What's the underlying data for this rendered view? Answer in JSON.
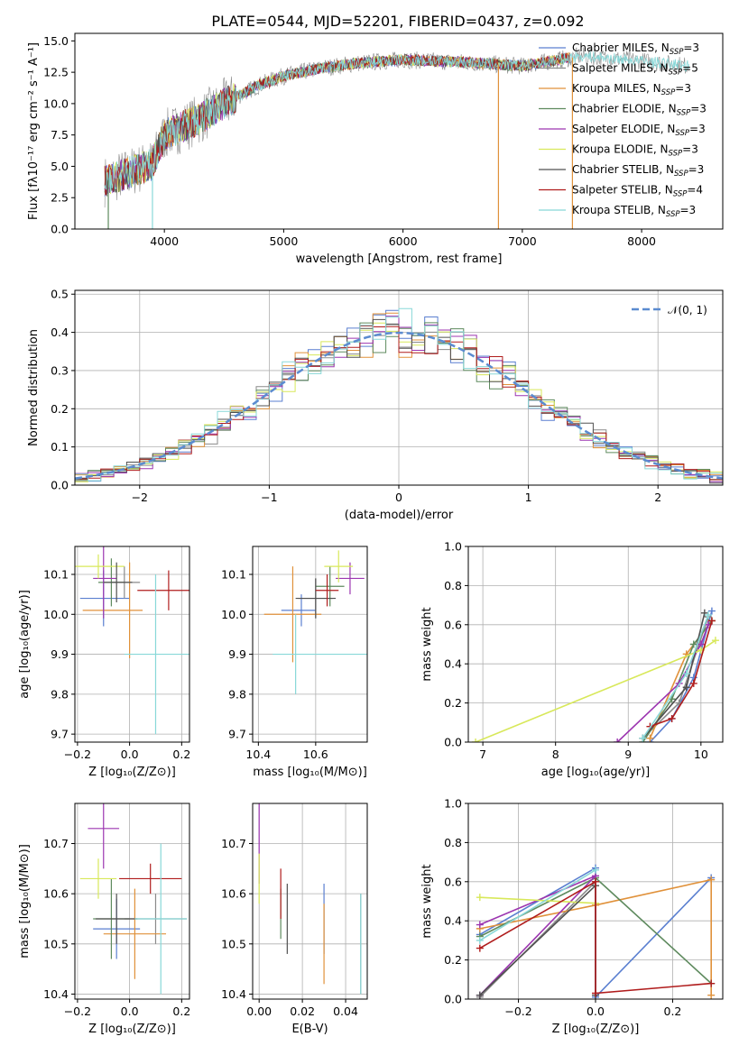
{
  "figure": {
    "title": "PLATE=0544, MJD=52201, FIBERID=0437, z=0.092"
  },
  "series": [
    {
      "label": "Chabrier MILES, N",
      "n": "3",
      "color": "#5a7fd0"
    },
    {
      "label": "Salpeter MILES, N",
      "n": "5",
      "color": "#8a8a8a"
    },
    {
      "label": "Kroupa MILES, N",
      "n": "3",
      "color": "#e0913a"
    },
    {
      "label": "Chabrier ELODIE, N",
      "n": "3",
      "color": "#5e8a5e"
    },
    {
      "label": "Salpeter ELODIE, N",
      "n": "3",
      "color": "#9c35b0"
    },
    {
      "label": "Kroupa ELODIE, N",
      "n": "3",
      "color": "#d8e85a"
    },
    {
      "label": "Chabrier STELIB, N",
      "n": "3",
      "color": "#505050"
    },
    {
      "label": "Salpeter STELIB, N",
      "n": "4",
      "color": "#b01c1c"
    },
    {
      "label": "Kroupa STELIB, N",
      "n": "3",
      "color": "#88d8d8"
    }
  ],
  "ssp_subscript": "SSP",
  "chart_data": [
    {
      "id": "spectrum",
      "type": "line",
      "xlabel": "wavelength [Angstrom, rest frame]",
      "ylabel": "Flux [fλ10⁻¹⁷ erg cm⁻² s⁻¹ A⁻¹]",
      "xlim": [
        3250,
        8680
      ],
      "ylim": [
        0,
        15.6
      ],
      "xticks": [
        4000,
        5000,
        6000,
        7000,
        8000
      ],
      "yticks": [
        0.0,
        2.5,
        5.0,
        7.5,
        10.0,
        12.5,
        15.0
      ],
      "x_range": [
        3500,
        8400
      ],
      "envelope": [
        [
          3500,
          3.8
        ],
        [
          3700,
          4.5
        ],
        [
          3900,
          5.2
        ],
        [
          4000,
          7.5
        ],
        [
          4300,
          8.8
        ],
        [
          4500,
          10.0
        ],
        [
          4800,
          11.5
        ],
        [
          5000,
          12.2
        ],
        [
          5300,
          12.8
        ],
        [
          5600,
          13.2
        ],
        [
          6000,
          13.5
        ],
        [
          6500,
          13.3
        ],
        [
          7000,
          13.0
        ],
        [
          7500,
          13.8
        ],
        [
          8000,
          13.4
        ],
        [
          8400,
          13.0
        ]
      ]
    },
    {
      "id": "residuals",
      "type": "bar",
      "xlabel": "(data-model)/error",
      "ylabel": "Normed distribution",
      "xlim": [
        -2.5,
        2.5
      ],
      "ylim": [
        0,
        0.51
      ],
      "xticks": [
        -2,
        -1,
        0,
        1,
        2
      ],
      "yticks": [
        0.0,
        0.1,
        0.2,
        0.3,
        0.4,
        0.5
      ],
      "grid": true,
      "legend": "upper right",
      "legend_label": "𝒩(0, 1)",
      "bin_width": 0.1
    },
    {
      "id": "age-z",
      "type": "scatter",
      "xlabel": "Z [log₁₀(Z/Z⊙)]",
      "ylabel": "age  [log₁₀(age/yr)]",
      "xlim": [
        -0.21,
        0.23
      ],
      "ylim": [
        9.68,
        10.17
      ],
      "xticks": [
        -0.2,
        0.0,
        0.2
      ],
      "yticks": [
        9.7,
        9.8,
        9.9,
        10.0,
        10.1
      ],
      "grid": true,
      "points": [
        [
          -0.1,
          10.04,
          0.09,
          0.1,
          0.07
        ],
        [
          -0.02,
          10.08,
          0.05,
          0.06,
          0.04
        ],
        [
          0.0,
          10.01,
          0.18,
          0.05,
          0.12
        ],
        [
          -0.07,
          10.08,
          0.05,
          0.05,
          0.06
        ],
        [
          -0.1,
          10.09,
          0.04,
          0.05,
          0.1
        ],
        [
          -0.12,
          10.12,
          0.1,
          0.1,
          0.03
        ],
        [
          -0.05,
          10.08,
          0.05,
          0.06,
          0.05
        ],
        [
          0.15,
          10.06,
          0.12,
          0.12,
          0.05
        ],
        [
          0.1,
          9.9,
          0.12,
          0.24,
          0.2
        ]
      ]
    },
    {
      "id": "age-mass",
      "type": "scatter",
      "xlabel": "mass [log₁₀(M/M⊙)]",
      "ylabel": "",
      "xlim": [
        10.38,
        10.78
      ],
      "ylim": [
        9.68,
        10.17
      ],
      "xticks": [
        10.4,
        10.6
      ],
      "yticks": [
        9.7,
        9.8,
        9.9,
        10.0,
        10.1
      ],
      "grid": true,
      "points": [
        [
          10.55,
          10.01,
          0.07,
          0.05,
          0.04
        ],
        [
          10.6,
          10.04,
          0.06,
          0.06,
          0.05
        ],
        [
          10.52,
          10.0,
          0.1,
          0.1,
          0.12
        ],
        [
          10.65,
          10.07,
          0.05,
          0.05,
          0.05
        ],
        [
          10.72,
          10.09,
          0.05,
          0.05,
          0.04
        ],
        [
          10.68,
          10.12,
          0.05,
          0.05,
          0.04
        ],
        [
          10.6,
          10.04,
          0.07,
          0.07,
          0.05
        ],
        [
          10.64,
          10.06,
          0.04,
          0.04,
          0.04
        ],
        [
          10.53,
          9.9,
          0.08,
          0.25,
          0.1
        ]
      ]
    },
    {
      "id": "mw-age",
      "type": "line",
      "xlabel": "age  [log₁₀(age/yr)]",
      "ylabel": "mass weight",
      "xlim": [
        6.8,
        10.3
      ],
      "ylim": [
        0,
        1.0
      ],
      "xticks": [
        7,
        8,
        9,
        10
      ],
      "yticks": [
        0.0,
        0.2,
        0.4,
        0.6,
        0.8,
        1.0
      ],
      "grid": true,
      "lines": [
        [
          [
            9.3,
            0.0
          ],
          [
            9.6,
            0.12
          ],
          [
            9.9,
            0.33
          ],
          [
            10.15,
            0.67
          ]
        ],
        [
          [
            9.2,
            0.02
          ],
          [
            9.7,
            0.2
          ],
          [
            10.1,
            0.64
          ]
        ],
        [
          [
            9.3,
            0.02
          ],
          [
            9.8,
            0.45
          ],
          [
            10.15,
            0.62
          ]
        ],
        [
          [
            9.2,
            0.0
          ],
          [
            9.6,
            0.22
          ],
          [
            9.9,
            0.5
          ],
          [
            10.15,
            0.62
          ]
        ],
        [
          [
            8.85,
            0.0
          ],
          [
            9.7,
            0.3
          ],
          [
            10.0,
            0.5
          ],
          [
            10.1,
            0.6
          ]
        ],
        [
          [
            6.9,
            0.0
          ],
          [
            10.0,
            0.47
          ],
          [
            10.2,
            0.52
          ]
        ],
        [
          [
            9.2,
            0.02
          ],
          [
            9.8,
            0.28
          ],
          [
            10.05,
            0.66
          ]
        ],
        [
          [
            9.3,
            0.08
          ],
          [
            9.6,
            0.12
          ],
          [
            9.9,
            0.3
          ],
          [
            10.15,
            0.62
          ]
        ],
        [
          [
            9.2,
            0.02
          ],
          [
            9.8,
            0.35
          ],
          [
            10.1,
            0.65
          ]
        ]
      ]
    },
    {
      "id": "mass-z",
      "type": "scatter",
      "xlabel": "Z [log₁₀(Z/Z⊙)]",
      "ylabel": "mass [log₁₀(M/M⊙)]",
      "xlim": [
        -0.21,
        0.23
      ],
      "ylim": [
        10.39,
        10.78
      ],
      "xticks": [
        -0.2,
        0.0,
        0.2
      ],
      "yticks": [
        10.4,
        10.5,
        10.6,
        10.7
      ],
      "grid": true,
      "points": [
        [
          -0.05,
          10.53,
          0.09,
          0.09,
          0.06
        ],
        [
          0.1,
          10.55,
          0.12,
          0.12,
          0.05
        ],
        [
          0.02,
          10.52,
          0.12,
          0.12,
          0.09
        ],
        [
          -0.07,
          10.55,
          0.07,
          0.07,
          0.08
        ],
        [
          -0.1,
          10.73,
          0.06,
          0.06,
          0.08
        ],
        [
          -0.12,
          10.63,
          0.07,
          0.07,
          0.04
        ],
        [
          -0.05,
          10.55,
          0.08,
          0.08,
          0.05
        ],
        [
          0.08,
          10.63,
          0.12,
          0.12,
          0.03
        ],
        [
          0.12,
          10.55,
          0.1,
          0.1,
          0.15
        ]
      ]
    },
    {
      "id": "mass-ebv",
      "type": "scatter",
      "xlabel": "E(B-V)",
      "ylabel": "",
      "xlim": [
        -0.003,
        0.05
      ],
      "ylim": [
        10.39,
        10.78
      ],
      "xticks": [
        0.0,
        0.02,
        0.04
      ],
      "yticks": [
        10.4,
        10.5,
        10.6,
        10.7
      ],
      "grid": true,
      "points": [
        [
          0.03,
          10.55,
          0,
          0,
          0.07
        ],
        [
          0.047,
          10.5,
          0,
          0,
          0.1
        ],
        [
          0.03,
          10.5,
          0,
          0,
          0.08
        ],
        [
          0.01,
          10.56,
          0,
          0,
          0.05
        ],
        [
          0.0,
          10.7,
          0,
          0,
          0.08
        ],
        [
          0.0,
          10.63,
          0,
          0,
          0.05
        ],
        [
          0.013,
          10.55,
          0,
          0,
          0.07
        ],
        [
          0.01,
          10.6,
          0,
          0,
          0.05
        ],
        [
          0.047,
          10.5,
          0,
          0,
          0.1
        ]
      ]
    },
    {
      "id": "mw-z",
      "type": "line",
      "xlabel": "Z [log₁₀(Z/Z⊙)]",
      "ylabel": "mass weight",
      "xlim": [
        -0.33,
        0.33
      ],
      "ylim": [
        0,
        1.0
      ],
      "xticks": [
        -0.2,
        0.0,
        0.2
      ],
      "yticks": [
        0.0,
        0.2,
        0.4,
        0.6,
        0.8,
        1.0
      ],
      "grid": true,
      "lines": [
        [
          [
            -0.3,
            0.33
          ],
          [
            0.0,
            0.67
          ],
          [
            0.0,
            0.01
          ],
          [
            0.3,
            0.62
          ]
        ],
        [
          [
            -0.3,
            0.01
          ],
          [
            0.0,
            0.6
          ]
        ],
        [
          [
            -0.3,
            0.36
          ],
          [
            0.0,
            0.48
          ],
          [
            0.3,
            0.61
          ],
          [
            0.3,
            0.02
          ]
        ],
        [
          [
            -0.3,
            0.32
          ],
          [
            0.0,
            0.62
          ],
          [
            0.3,
            0.08
          ]
        ],
        [
          [
            -0.3,
            0.02
          ],
          [
            0.0,
            0.63
          ],
          [
            -0.3,
            0.38
          ]
        ],
        [
          [
            -0.3,
            0.52
          ],
          [
            0.0,
            0.49
          ]
        ],
        [
          [
            -0.3,
            0.02
          ],
          [
            0.0,
            0.58
          ],
          [
            0.0,
            0.02
          ]
        ],
        [
          [
            -0.3,
            0.26
          ],
          [
            0.0,
            0.6
          ],
          [
            0.0,
            0.03
          ],
          [
            0.3,
            0.08
          ]
        ],
        [
          [
            -0.3,
            0.3
          ],
          [
            0.0,
            0.66
          ]
        ]
      ]
    }
  ]
}
